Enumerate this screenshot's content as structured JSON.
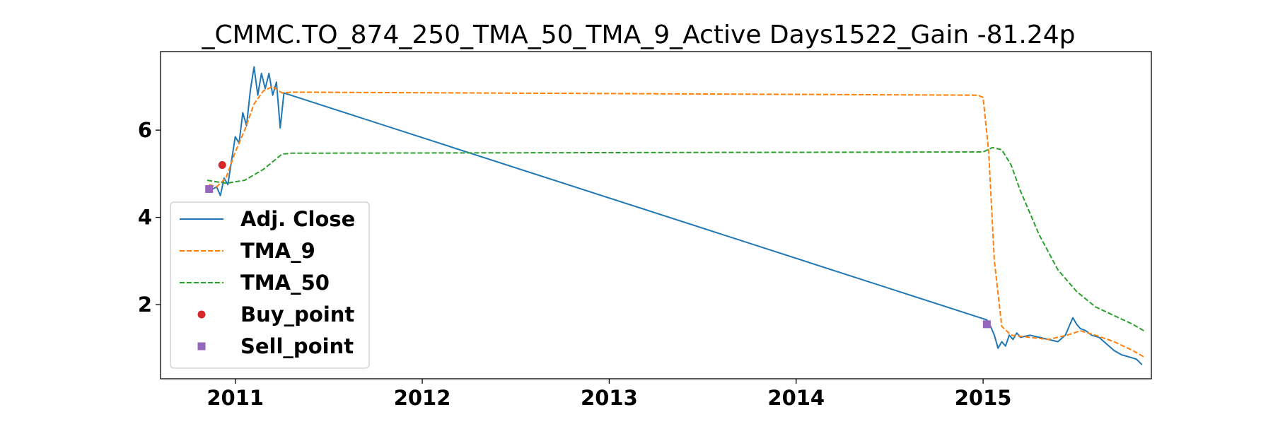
{
  "chart_data": {
    "type": "line",
    "title": "_CMMC.TO_874_250_TMA_50_TMA_9_Active Days1522_Gain -81.24p",
    "xlabel": "",
    "ylabel": "",
    "xlim": [
      2010.6,
      2015.9
    ],
    "ylim": [
      0.3,
      7.8
    ],
    "x_ticks": [
      2011,
      2012,
      2013,
      2014,
      2015
    ],
    "x_tick_labels": [
      "2011",
      "2012",
      "2013",
      "2014",
      "2015"
    ],
    "y_ticks": [
      2,
      4,
      6
    ],
    "y_tick_labels": [
      "2",
      "4",
      "6"
    ],
    "grid": false,
    "legend_position": "lower-left",
    "series": [
      {
        "name": "Adj. Close",
        "style": "solid",
        "color": "#1f77b4",
        "points": [
          [
            2010.88,
            4.65
          ],
          [
            2010.9,
            4.7
          ],
          [
            2010.92,
            4.5
          ],
          [
            2010.94,
            4.9
          ],
          [
            2010.96,
            4.75
          ],
          [
            2010.98,
            5.3
          ],
          [
            2011.0,
            5.85
          ],
          [
            2011.02,
            5.7
          ],
          [
            2011.04,
            6.4
          ],
          [
            2011.06,
            6.1
          ],
          [
            2011.08,
            6.9
          ],
          [
            2011.1,
            7.45
          ],
          [
            2011.12,
            6.8
          ],
          [
            2011.14,
            7.3
          ],
          [
            2011.16,
            6.95
          ],
          [
            2011.18,
            7.3
          ],
          [
            2011.2,
            6.8
          ],
          [
            2011.22,
            7.1
          ],
          [
            2011.24,
            6.05
          ],
          [
            2011.26,
            6.85
          ],
          [
            2015.02,
            1.65
          ],
          [
            2015.04,
            1.5
          ],
          [
            2015.06,
            1.3
          ],
          [
            2015.08,
            1.0
          ],
          [
            2015.1,
            1.15
          ],
          [
            2015.12,
            1.05
          ],
          [
            2015.14,
            1.3
          ],
          [
            2015.16,
            1.2
          ],
          [
            2015.18,
            1.35
          ],
          [
            2015.2,
            1.25
          ],
          [
            2015.25,
            1.3
          ],
          [
            2015.3,
            1.25
          ],
          [
            2015.35,
            1.2
          ],
          [
            2015.4,
            1.15
          ],
          [
            2015.44,
            1.3
          ],
          [
            2015.46,
            1.5
          ],
          [
            2015.48,
            1.7
          ],
          [
            2015.5,
            1.55
          ],
          [
            2015.52,
            1.45
          ],
          [
            2015.55,
            1.4
          ],
          [
            2015.58,
            1.3
          ],
          [
            2015.62,
            1.25
          ],
          [
            2015.66,
            1.1
          ],
          [
            2015.7,
            0.95
          ],
          [
            2015.74,
            0.85
          ],
          [
            2015.78,
            0.8
          ],
          [
            2015.82,
            0.75
          ],
          [
            2015.85,
            0.62
          ]
        ]
      },
      {
        "name": "TMA_9",
        "style": "dashed",
        "color": "#ff7f0e",
        "points": [
          [
            2010.86,
            4.75
          ],
          [
            2010.9,
            4.7
          ],
          [
            2010.95,
            4.9
          ],
          [
            2011.0,
            5.5
          ],
          [
            2011.05,
            6.0
          ],
          [
            2011.1,
            6.6
          ],
          [
            2011.15,
            6.9
          ],
          [
            2011.2,
            7.0
          ],
          [
            2011.25,
            6.85
          ],
          [
            2011.3,
            6.87
          ],
          [
            2014.97,
            6.8
          ],
          [
            2015.0,
            6.75
          ],
          [
            2015.03,
            5.5
          ],
          [
            2015.06,
            3.0
          ],
          [
            2015.1,
            1.5
          ],
          [
            2015.15,
            1.3
          ],
          [
            2015.25,
            1.25
          ],
          [
            2015.35,
            1.2
          ],
          [
            2015.45,
            1.3
          ],
          [
            2015.52,
            1.4
          ],
          [
            2015.6,
            1.3
          ],
          [
            2015.7,
            1.15
          ],
          [
            2015.8,
            0.95
          ],
          [
            2015.86,
            0.8
          ]
        ]
      },
      {
        "name": "TMA_50",
        "style": "dashed",
        "color": "#2ca02c",
        "points": [
          [
            2010.85,
            4.85
          ],
          [
            2010.95,
            4.78
          ],
          [
            2011.05,
            4.85
          ],
          [
            2011.15,
            5.1
          ],
          [
            2011.25,
            5.45
          ],
          [
            2011.3,
            5.47
          ],
          [
            2015.0,
            5.5
          ],
          [
            2015.05,
            5.6
          ],
          [
            2015.1,
            5.55
          ],
          [
            2015.15,
            5.2
          ],
          [
            2015.2,
            4.6
          ],
          [
            2015.3,
            3.6
          ],
          [
            2015.4,
            2.8
          ],
          [
            2015.5,
            2.3
          ],
          [
            2015.6,
            1.95
          ],
          [
            2015.7,
            1.75
          ],
          [
            2015.8,
            1.55
          ],
          [
            2015.86,
            1.4
          ]
        ]
      }
    ],
    "markers": [
      {
        "name": "Buy_point",
        "shape": "circle",
        "color": "#d62728",
        "points": [
          [
            2010.93,
            5.2
          ]
        ]
      },
      {
        "name": "Sell_point",
        "shape": "square",
        "color": "#9467bd",
        "points": [
          [
            2010.86,
            4.65
          ],
          [
            2015.02,
            1.55
          ]
        ]
      }
    ],
    "legend": [
      {
        "label": "Adj. Close",
        "kind": "solid-line",
        "color": "#1f77b4"
      },
      {
        "label": "TMA_9",
        "kind": "dashed-line",
        "color": "#ff7f0e"
      },
      {
        "label": "TMA_50",
        "kind": "dashed-line",
        "color": "#2ca02c"
      },
      {
        "label": "Buy_point",
        "kind": "circle",
        "color": "#d62728"
      },
      {
        "label": "Sell_point",
        "kind": "square",
        "color": "#9467bd"
      }
    ]
  }
}
